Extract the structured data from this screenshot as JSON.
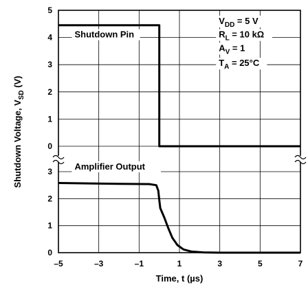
{
  "chart_data": [
    {
      "type": "line",
      "panel": "top",
      "ylabel": "Shutdown Voltage, V",
      "ylabel_sub": "SD",
      "ylabel_unit": " (V)",
      "yticks": [
        0,
        1,
        2,
        3,
        4,
        5
      ],
      "ylim": [
        0,
        5
      ],
      "xlim": [
        -5,
        7
      ],
      "grid": true,
      "series": [
        {
          "name": "Shutdown Pin",
          "points": [
            [
              -5,
              4.45
            ],
            [
              0,
              4.45
            ],
            [
              0,
              0
            ],
            [
              7,
              0
            ]
          ]
        }
      ],
      "annotations": [
        {
          "text": "Shutdown Pin",
          "x": -4.2,
          "y": 4.0
        },
        {
          "main": "V",
          "sub": "DD",
          "rest": " = 5 V",
          "x": 2.95,
          "y": 4.5
        },
        {
          "main": "R",
          "sub": "L",
          "rest": " = 10 kΩ",
          "x": 2.95,
          "y": 4.0
        },
        {
          "main": "A",
          "sub": "V",
          "rest": " = 1",
          "x": 2.95,
          "y": 3.5
        },
        {
          "main": "T",
          "sub": "A",
          "rest": " = 25°C",
          "x": 2.95,
          "y": 2.95
        }
      ]
    },
    {
      "type": "line",
      "panel": "bottom",
      "yticks": [
        0,
        1,
        2,
        3
      ],
      "ylim": [
        0,
        3.4
      ],
      "xlim": [
        -5,
        7
      ],
      "xticks": [
        -5,
        -3,
        -1,
        1,
        3,
        5,
        7
      ],
      "xtick_labels": [
        "–5",
        "–3",
        "–1",
        "1",
        "3",
        "5",
        "7"
      ],
      "xlabel": "Time, t (µs)",
      "grid": true,
      "series": [
        {
          "name": "Amplifier Output",
          "points": [
            [
              -5,
              2.58
            ],
            [
              -2,
              2.55
            ],
            [
              -0.5,
              2.54
            ],
            [
              -0.15,
              2.5
            ],
            [
              -0.05,
              2.3
            ],
            [
              0.0,
              1.95
            ],
            [
              0.05,
              1.65
            ],
            [
              0.25,
              1.3
            ],
            [
              0.45,
              0.9
            ],
            [
              0.65,
              0.55
            ],
            [
              0.9,
              0.28
            ],
            [
              1.2,
              0.12
            ],
            [
              1.6,
              0.04
            ],
            [
              2.2,
              0.01
            ],
            [
              3,
              0.0
            ],
            [
              7,
              0.0
            ]
          ]
        }
      ],
      "annotations": [
        {
          "text": "Amplifier Output",
          "x": -4.2,
          "y": 3.08
        }
      ]
    }
  ]
}
